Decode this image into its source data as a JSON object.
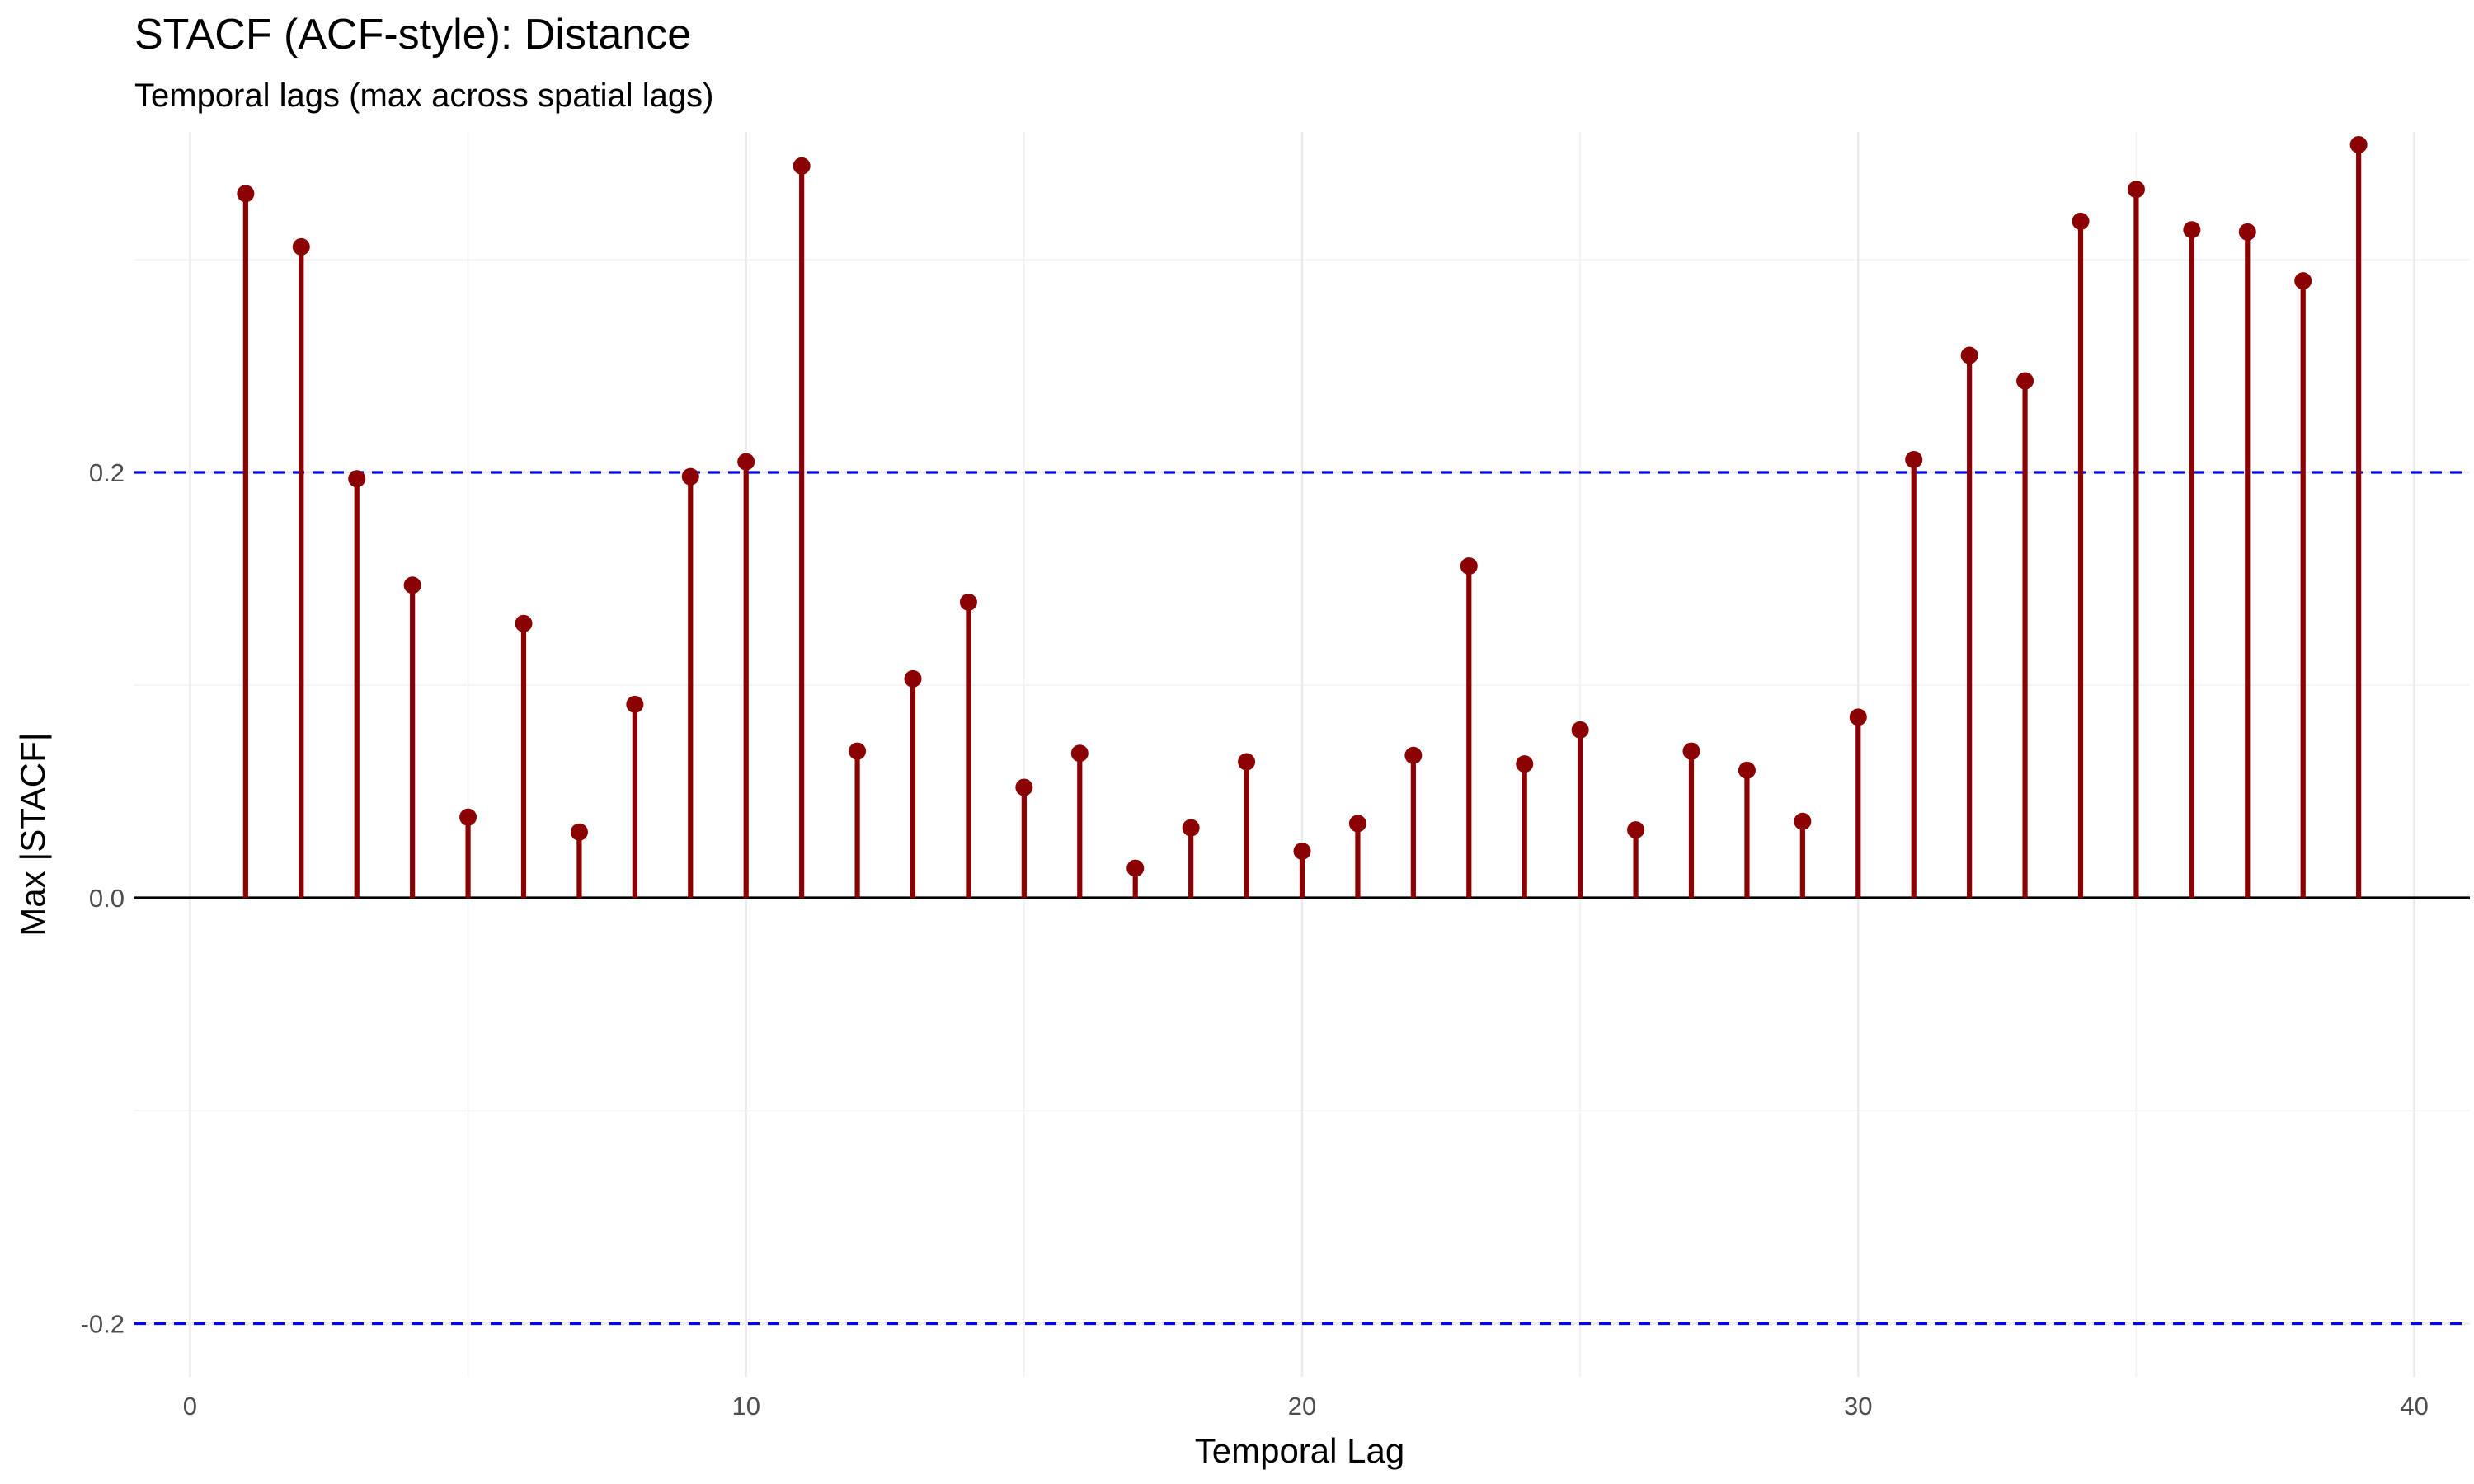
{
  "chart_data": {
    "type": "stem",
    "title": "STACF (ACF-style): Distance",
    "subtitle": "Temporal lags (max across spatial lags)",
    "xlabel": "Temporal Lag",
    "ylabel": "Max |STACF|",
    "xlim": [
      -1.0,
      41.0
    ],
    "ylim": [
      -0.225,
      0.36
    ],
    "x_ticks": [
      0,
      10,
      20,
      30,
      40
    ],
    "x_tick_labels": [
      "0",
      "10",
      "20",
      "30",
      "40"
    ],
    "y_ticks": [
      -0.2,
      0.0,
      0.2
    ],
    "y_tick_labels": [
      "-0.2",
      "0.0",
      "0.2"
    ],
    "grid": true,
    "legend": "none",
    "series": [
      {
        "color": "#8b0000",
        "x": [
          1,
          2,
          3,
          4,
          5,
          6,
          7,
          8,
          9,
          10,
          11,
          12,
          13,
          14,
          15,
          16,
          17,
          18,
          19,
          20,
          21,
          22,
          23,
          24,
          25,
          26,
          27,
          28,
          29,
          30,
          31,
          32,
          33,
          34,
          35,
          36,
          37,
          38,
          39
        ],
        "values": [
          0.331,
          0.306,
          0.197,
          0.147,
          0.038,
          0.129,
          0.031,
          0.091,
          0.198,
          0.205,
          0.344,
          0.069,
          0.103,
          0.139,
          0.052,
          0.068,
          0.014,
          0.033,
          0.064,
          0.022,
          0.035,
          0.067,
          0.156,
          0.063,
          0.079,
          0.032,
          0.069,
          0.06,
          0.036,
          0.085,
          0.206,
          0.255,
          0.243,
          0.318,
          0.333,
          0.314,
          0.313,
          0.29,
          0.354
        ]
      }
    ],
    "reference_lines": [
      {
        "y": 0.2,
        "color": "#0000ff",
        "style": "dashed"
      },
      {
        "y": -0.2,
        "color": "#0000ff",
        "style": "dashed"
      },
      {
        "y": 0.0,
        "color": "#000000",
        "style": "solid"
      }
    ]
  }
}
